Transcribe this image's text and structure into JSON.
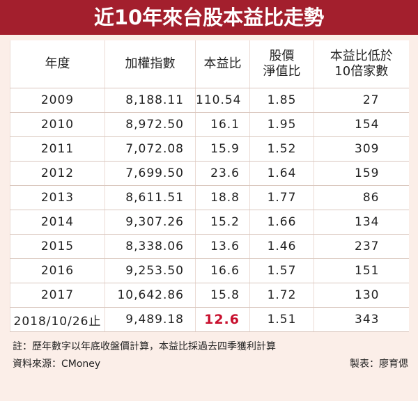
{
  "header": {
    "title": "近10年來台股本益比走勢"
  },
  "table": {
    "columns": [
      "年度",
      "加權指數",
      "本益比",
      "股價\n淨值比",
      "本益比低於\n10倍家數"
    ],
    "rows": [
      [
        "2009",
        "8,188.11",
        "110.54",
        "1.85",
        "27"
      ],
      [
        "2010",
        "8,972.50",
        "16.1",
        "1.95",
        "154"
      ],
      [
        "2011",
        "7,072.08",
        "15.9",
        "1.52",
        "309"
      ],
      [
        "2012",
        "7,699.50",
        "23.6",
        "1.64",
        "159"
      ],
      [
        "2013",
        "8,611.51",
        "18.8",
        "1.77",
        "86"
      ],
      [
        "2014",
        "9,307.26",
        "15.2",
        "1.66",
        "134"
      ],
      [
        "2015",
        "8,338.06",
        "13.6",
        "1.46",
        "237"
      ],
      [
        "2016",
        "9,253.50",
        "16.6",
        "1.57",
        "151"
      ],
      [
        "2017",
        "10,642.86",
        "15.8",
        "1.72",
        "130"
      ],
      [
        "2018/10/26止",
        "9,489.18",
        "12.6",
        "1.51",
        "343"
      ]
    ]
  },
  "footer": {
    "note": "註：歷年數字以年底收盤價計算，本益比採過去四季獲利計算",
    "source": "資料來源：CMoney",
    "credit": "製表：廖育偲"
  }
}
